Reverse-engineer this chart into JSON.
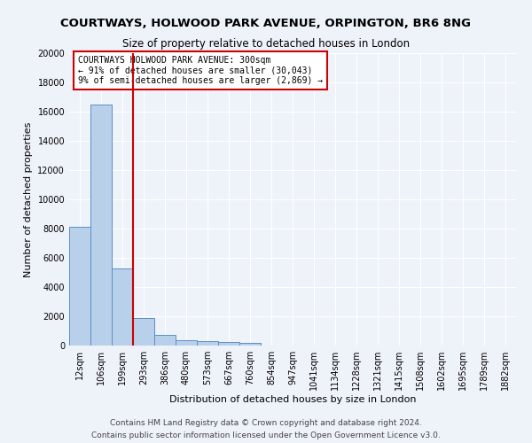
{
  "title1": "COURTWAYS, HOLWOOD PARK AVENUE, ORPINGTON, BR6 8NG",
  "title2": "Size of property relative to detached houses in London",
  "xlabel": "Distribution of detached houses by size in London",
  "ylabel": "Number of detached properties",
  "bar_values": [
    8100,
    16500,
    5300,
    1850,
    750,
    380,
    280,
    220,
    190,
    0,
    0,
    0,
    0,
    0,
    0,
    0,
    0,
    0,
    0,
    0,
    0
  ],
  "bar_labels": [
    "12sqm",
    "106sqm",
    "199sqm",
    "293sqm",
    "386sqm",
    "480sqm",
    "573sqm",
    "667sqm",
    "760sqm",
    "854sqm",
    "947sqm",
    "1041sqm",
    "1134sqm",
    "1228sqm",
    "1321sqm",
    "1415sqm",
    "1508sqm",
    "1602sqm",
    "1695sqm",
    "1789sqm",
    "1882sqm"
  ],
  "bar_color": "#b8d0ea",
  "bar_edge_color": "#5b8fc9",
  "vline_color": "#cc0000",
  "annotation_text": "COURTWAYS HOLWOOD PARK AVENUE: 300sqm\n← 91% of detached houses are smaller (30,043)\n9% of semi-detached houses are larger (2,869) →",
  "annotation_box_color": "white",
  "annotation_box_edge": "#cc0000",
  "ylim": [
    0,
    20000
  ],
  "yticks": [
    0,
    2000,
    4000,
    6000,
    8000,
    10000,
    12000,
    14000,
    16000,
    18000,
    20000
  ],
  "footer1": "Contains HM Land Registry data © Crown copyright and database right 2024.",
  "footer2": "Contains public sector information licensed under the Open Government Licence v3.0.",
  "bg_color": "#eef2f9",
  "plot_bg_color": "#eef2f9",
  "grid_color": "#ffffff",
  "title1_fontsize": 9.5,
  "title2_fontsize": 8.5,
  "xlabel_fontsize": 8,
  "ylabel_fontsize": 8,
  "tick_fontsize": 7,
  "annotation_fontsize": 7,
  "footer_fontsize": 6.5
}
